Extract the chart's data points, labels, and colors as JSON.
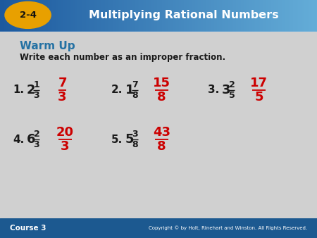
{
  "title": "Multiplying Rational Numbers",
  "section": "2-4",
  "course": "Course 3",
  "warm_up_title": "Warm Up",
  "subtitle": "Write each number as an improper fraction.",
  "copyright": "Copyright © by Holt, Rinehart and Winston. All Rights Reserved.",
  "header_bg_left": "#1a5276",
  "header_bg_right": "#5dade2",
  "badge_color": "#e8a000",
  "body_bg": "#d0d0d0",
  "footer_bg": "#1a5276",
  "warm_up_color": "#2471a3",
  "answer_color": "#cc0000",
  "black_color": "#1a1a1a",
  "white_color": "#ffffff",
  "problems": [
    {
      "num": "1.",
      "whole": "2",
      "num_f": "1",
      "den_f": "3",
      "ans_num": "7",
      "ans_den": "3"
    },
    {
      "num": "2.",
      "whole": "1",
      "num_f": "7",
      "den_f": "8",
      "ans_num": "15",
      "ans_den": "8"
    },
    {
      "num": "3.",
      "whole": "3",
      "num_f": "2",
      "den_f": "5",
      "ans_num": "17",
      "ans_den": "5"
    },
    {
      "num": "4.",
      "whole": "6",
      "num_f": "2",
      "den_f": "3",
      "ans_num": "20",
      "ans_den": "3"
    },
    {
      "num": "5.",
      "whole": "5",
      "num_f": "3",
      "den_f": "8",
      "ans_num": "43",
      "ans_den": "8"
    }
  ]
}
